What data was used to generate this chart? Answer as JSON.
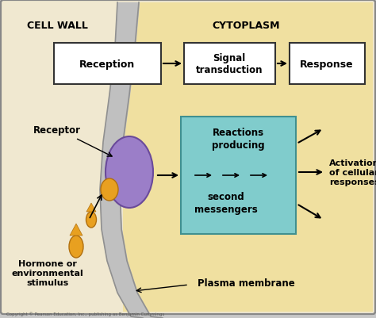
{
  "bg_outer": "#c8c8c8",
  "bg_left": "#f0e8d0",
  "bg_right": "#f0e0a0",
  "membrane_fill": "#c0c0c0",
  "membrane_edge": "#909090",
  "teal_box_color": "#80cccc",
  "teal_edge_color": "#409090",
  "white_box_color": "#ffffff",
  "receptor_body_color": "#9b7ec8",
  "receptor_edge_color": "#6a4a9a",
  "hormone_color": "#e8a020",
  "hormone_edge_color": "#b07010",
  "cell_wall_label": "CELL WALL",
  "cytoplasm_label": "CYTOPLASM",
  "reception_label": "Reception",
  "signal_label": "Signal\ntransduction",
  "response_label": "Response",
  "reactions_top": "Reactions\nproducing",
  "reactions_bottom": "second\nmessengers",
  "activation_label": "Activation\nof cellular\nresponses",
  "receptor_label": "Receptor",
  "hormone_label": "Hormone or\nenvironmental\nstimulus",
  "plasma_label": "Plasma membrane",
  "copyright_label": "Copyright © Pearson Education, Inc., publishing as Benjamin Cummings",
  "fig_width": 4.74,
  "fig_height": 4.02
}
